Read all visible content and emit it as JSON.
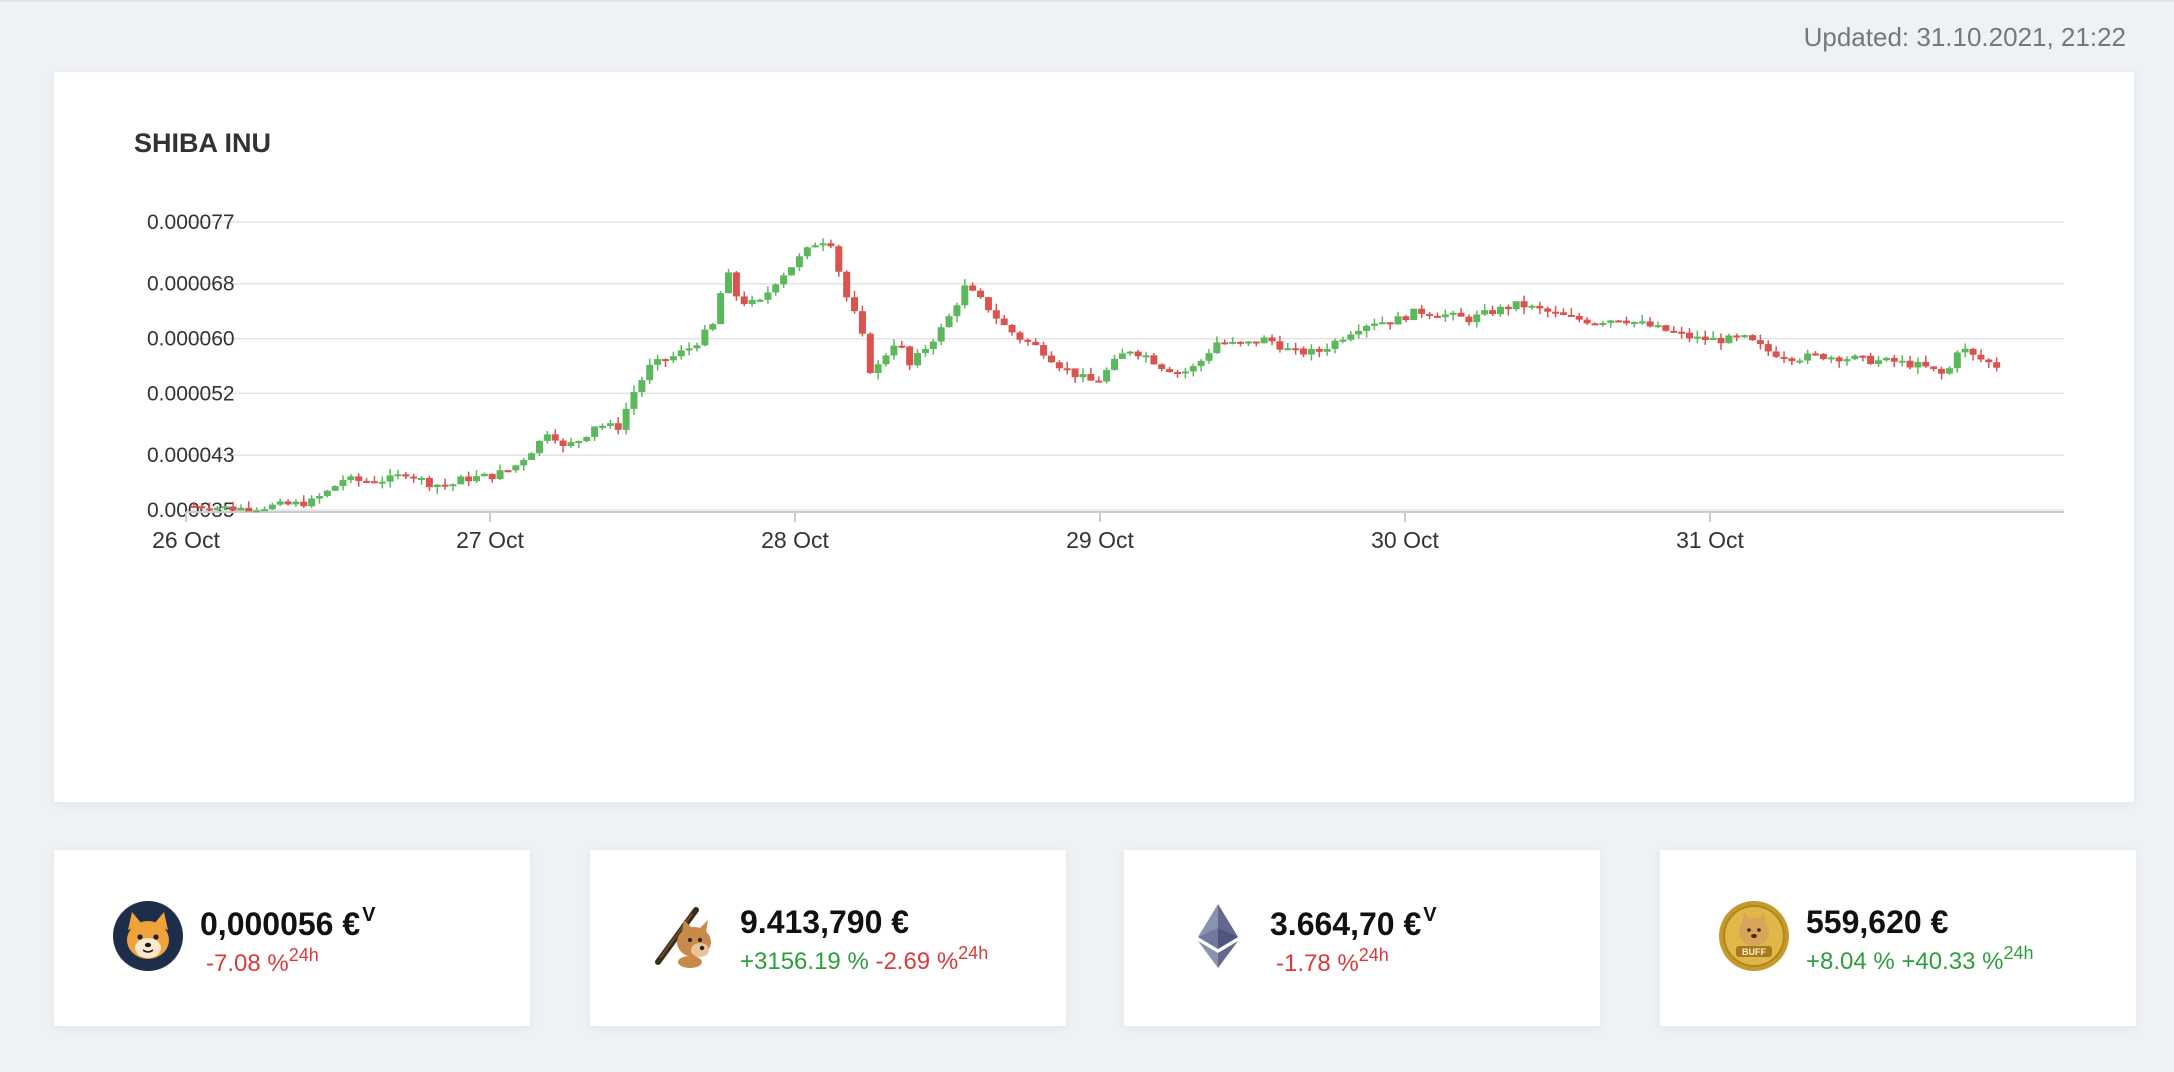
{
  "header": {
    "updated": "Updated: 31.10.2021, 21:22"
  },
  "colors": {
    "up": "#5cb85c",
    "down": "#d9534f",
    "grid": "#e3e3e3",
    "axis": "#cccccc"
  },
  "chart_data": {
    "type": "candlestick",
    "title": "SHIBA INU",
    "y_ticks": [
      "0.000077",
      "0.000068",
      "0.000060",
      "0.000052",
      "0.000043",
      "0.000035"
    ],
    "y_tick_values": [
      7.7e-05,
      6.8e-05,
      6e-05,
      5.2e-05,
      4.3e-05,
      3.5e-05
    ],
    "ylim": [
      3.5e-05,
      7.7e-05
    ],
    "x_ticks": [
      "26 Oct",
      "27 Oct",
      "28 Oct",
      "29 Oct",
      "30 Oct",
      "31 Oct"
    ],
    "x_tick_days": [
      0,
      1,
      2,
      3,
      4,
      5
    ],
    "xlim_days": [
      0,
      5.94
    ],
    "close_waypoints": [
      [
        0.0,
        3.56e-05
      ],
      [
        0.1,
        3.55e-05
      ],
      [
        0.2,
        3.52e-05
      ],
      [
        0.32,
        3.55e-05
      ],
      [
        0.42,
        3.58e-05
      ],
      [
        0.5,
        3.62e-05
      ],
      [
        0.58,
        3.8e-05
      ],
      [
        0.62,
        3.95e-05
      ],
      [
        0.7,
        3.92e-05
      ],
      [
        0.82,
        3.95e-05
      ],
      [
        0.88,
        4.05e-05
      ],
      [
        0.96,
        3.9e-05
      ],
      [
        1.05,
        3.85e-05
      ],
      [
        1.1,
        3.95e-05
      ],
      [
        1.22,
        4e-05
      ],
      [
        1.3,
        4.1e-05
      ],
      [
        1.4,
        4.45e-05
      ],
      [
        1.45,
        4.7e-05
      ],
      [
        1.5,
        4.4e-05
      ],
      [
        1.58,
        4.55e-05
      ],
      [
        1.63,
        4.75e-05
      ],
      [
        1.72,
        4.7e-05
      ],
      [
        1.78,
        5.2e-05
      ],
      [
        1.85,
        5.6e-05
      ],
      [
        1.95,
        5.75e-05
      ],
      [
        2.02,
        5.9e-05
      ],
      [
        2.1,
        6.2e-05
      ],
      [
        2.15,
        7e-05
      ],
      [
        2.2,
        6.55e-05
      ],
      [
        2.28,
        6.5e-05
      ],
      [
        2.35,
        6.85e-05
      ],
      [
        2.45,
        7.2e-05
      ],
      [
        2.52,
        7.45e-05
      ],
      [
        2.57,
        7.4e-05
      ],
      [
        2.62,
        6.68e-05
      ],
      [
        2.68,
        6.2e-05
      ],
      [
        2.73,
        5.45e-05
      ],
      [
        2.78,
        5.75e-05
      ],
      [
        2.83,
        6e-05
      ],
      [
        2.88,
        5.6e-05
      ],
      [
        2.95,
        5.9e-05
      ],
      [
        3.02,
        6.2e-05
      ],
      [
        3.1,
        6.75e-05
      ],
      [
        3.18,
        6.5e-05
      ],
      [
        3.25,
        6.2e-05
      ],
      [
        3.32,
        6e-05
      ],
      [
        3.4,
        5.85e-05
      ],
      [
        3.48,
        5.6e-05
      ],
      [
        3.55,
        5.45e-05
      ],
      [
        3.62,
        5.35e-05
      ],
      [
        3.68,
        5.6e-05
      ],
      [
        3.75,
        5.85e-05
      ],
      [
        3.82,
        5.75e-05
      ],
      [
        3.88,
        5.6e-05
      ],
      [
        3.96,
        5.5e-05
      ],
      [
        4.02,
        5.6e-05
      ],
      [
        4.1,
        5.95e-05
      ],
      [
        4.2,
        5.9e-05
      ],
      [
        4.3,
        6e-05
      ],
      [
        4.4,
        5.8e-05
      ],
      [
        4.5,
        5.8e-05
      ],
      [
        4.58,
        5.98e-05
      ],
      [
        4.65,
        6.15e-05
      ],
      [
        4.72,
        6.25e-05
      ],
      [
        4.8,
        6.25e-05
      ],
      [
        4.9,
        6.4e-05
      ],
      [
        5.0,
        6.35e-05
      ],
      [
        5.1,
        6.28e-05
      ],
      [
        5.2,
        6.4e-05
      ],
      [
        5.3,
        6.5e-05
      ],
      [
        5.4,
        6.4e-05
      ],
      [
        5.5,
        6.3e-05
      ],
      [
        5.6,
        6.25e-05
      ],
      [
        5.7,
        6.3e-05
      ],
      [
        5.8,
        6.2e-05
      ],
      [
        5.9,
        6.1e-05
      ],
      [
        6.0,
        6e-05
      ],
      [
        6.1,
        5.98e-05
      ],
      [
        6.2,
        6e-05
      ],
      [
        6.3,
        5.8e-05
      ],
      [
        6.4,
        5.72e-05
      ],
      [
        6.5,
        5.75e-05
      ],
      [
        6.6,
        5.72e-05
      ],
      [
        6.7,
        5.68e-05
      ],
      [
        6.8,
        5.66e-05
      ],
      [
        6.9,
        5.6e-05
      ],
      [
        7.0,
        5.45e-05
      ],
      [
        7.05,
        5.9e-05
      ],
      [
        7.1,
        5.75e-05
      ],
      [
        7.2,
        5.6e-05
      ]
    ]
  },
  "coins": [
    {
      "price": "0,000056 €",
      "price_sup": "V",
      "changes": [
        {
          "text": "-7.08 %",
          "sign": "neg"
        }
      ],
      "change_sup": "24h",
      "change_sup_sign": "neg",
      "icon": "shiba-coin-icon"
    },
    {
      "price": "9.413,790 €",
      "price_sup": "",
      "changes": [
        {
          "text": "+3156.19 %",
          "sign": "pos"
        },
        {
          "text": "-2.69 %",
          "sign": "neg"
        }
      ],
      "change_sup": "24h",
      "change_sup_sign": "neg",
      "icon": "cheems-bat-icon"
    },
    {
      "price": "3.664,70 €",
      "price_sup": "V",
      "changes": [
        {
          "text": "-1.78 %",
          "sign": "neg"
        }
      ],
      "change_sup": "24h",
      "change_sup_sign": "neg",
      "icon": "ethereum-icon"
    },
    {
      "price": "559,620 €",
      "price_sup": "",
      "changes": [
        {
          "text": "+8.04 %",
          "sign": "pos"
        },
        {
          "text": "+40.33 %",
          "sign": "pos"
        }
      ],
      "change_sup": "24h",
      "change_sup_sign": "pos",
      "icon": "buff-doge-coin-icon"
    }
  ]
}
